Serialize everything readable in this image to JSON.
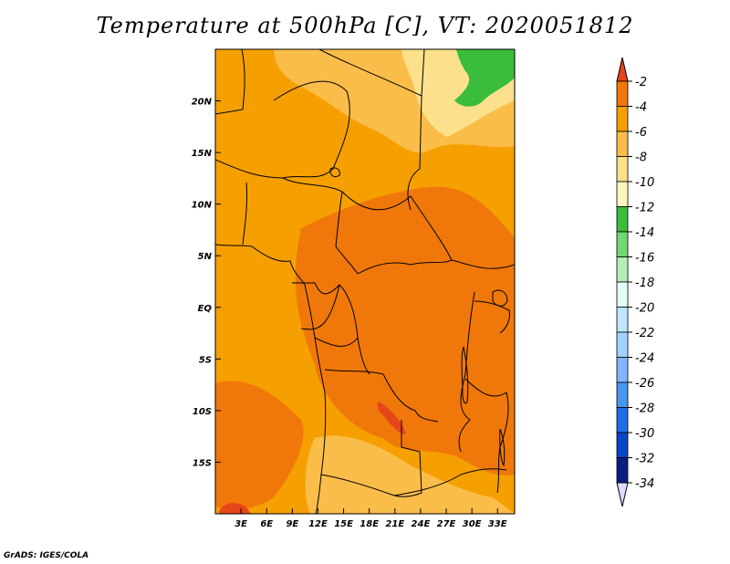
{
  "title": "Temperature at 500hPa [C], VT: 2020051812",
  "credit": "GrADS: IGES/COLA",
  "map": {
    "variable": "Temperature at 500hPa",
    "units": "C",
    "valid_time": "2020051812",
    "lon_range": [
      0,
      35
    ],
    "lat_range": [
      -20,
      25
    ],
    "lon_ticks": [
      "3E",
      "6E",
      "9E",
      "12E",
      "15E",
      "18E",
      "21E",
      "24E",
      "27E",
      "30E",
      "33E"
    ],
    "lat_ticks": [
      "20N",
      "15N",
      "10N",
      "5N",
      "EQ",
      "5S",
      "10S",
      "15S"
    ]
  },
  "colorbar": {
    "labels": [
      "-2",
      "-4",
      "-6",
      "-8",
      "-10",
      "-12",
      "-14",
      "-16",
      "-18",
      "-20",
      "-22",
      "-24",
      "-26",
      "-28",
      "-30",
      "-32",
      "-34"
    ],
    "colors": [
      "#e6451a",
      "#f0780a",
      "#f5a000",
      "#fbbd4a",
      "#fde08c",
      "#fff5be",
      "#3cbc3c",
      "#72d872",
      "#b4eeb4",
      "#e1fff5",
      "#c0e6ff",
      "#a0d2ff",
      "#82b4ff",
      "#4a96f0",
      "#1e6ee6",
      "#0a46c8",
      "#0a1e82"
    ],
    "top_triangle_color": "#e6451a",
    "bottom_triangle_color": "#dcdcff"
  },
  "fields": {
    "ocean": "#f5a000",
    "warm_band": "#f0780a",
    "cool_north": "#fbbd4a",
    "coldest_north": "#fde08c",
    "green_patch": "#3cbc3c",
    "hot_core": "#e6451a"
  }
}
